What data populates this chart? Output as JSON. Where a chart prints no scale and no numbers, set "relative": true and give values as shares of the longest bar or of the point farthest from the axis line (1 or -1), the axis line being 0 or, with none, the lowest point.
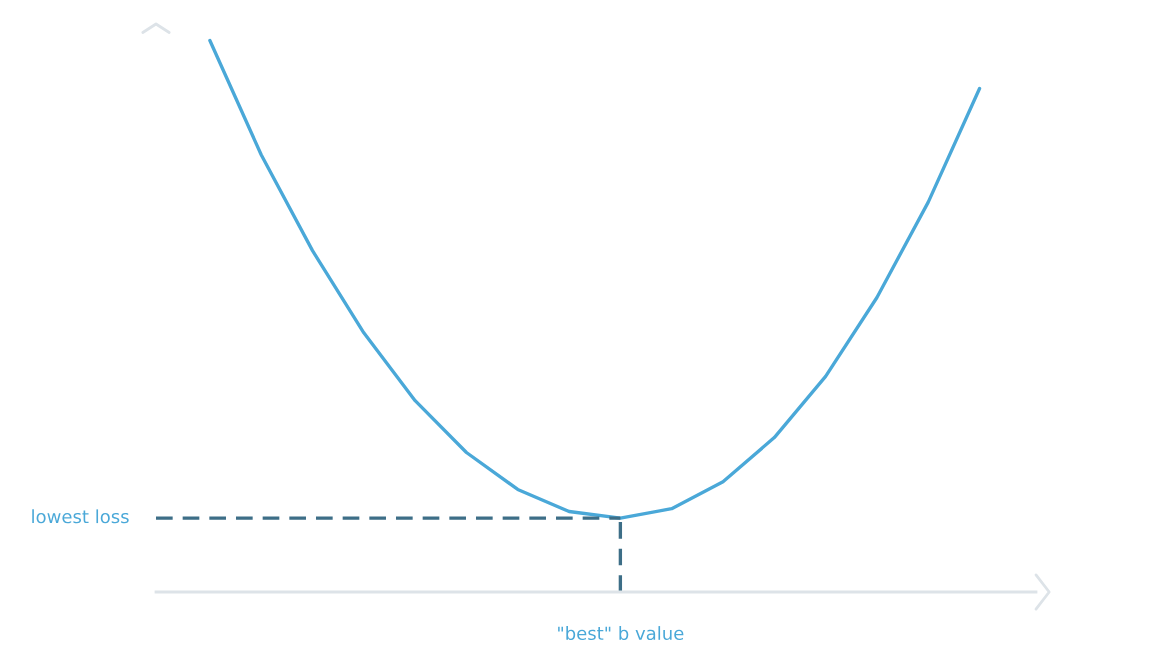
{
  "chart_data": {
    "type": "line",
    "relative": true,
    "categories": [
      null,
      null,
      null,
      null,
      null,
      null,
      null,
      null,
      null,
      null,
      null,
      null,
      null,
      null,
      null,
      null
    ],
    "series": [
      {
        "color": "#4aa8d8",
        "values": [
          1.0,
          0.793,
          0.619,
          0.47,
          0.347,
          0.253,
          0.186,
          0.146,
          0.134,
          0.151,
          0.2,
          0.28,
          0.391,
          0.534,
          0.707,
          0.913
        ]
      }
    ],
    "ref_lines": [
      {
        "axis": "y",
        "value": 0.134,
        "label": "lowest loss",
        "color": "#3d6e87",
        "line_style": "dashed"
      }
    ],
    "annotations": [
      "\"best\" b value"
    ],
    "legend": false,
    "marker": "none",
    "line_style": "solid",
    "tick_labels": false
  }
}
